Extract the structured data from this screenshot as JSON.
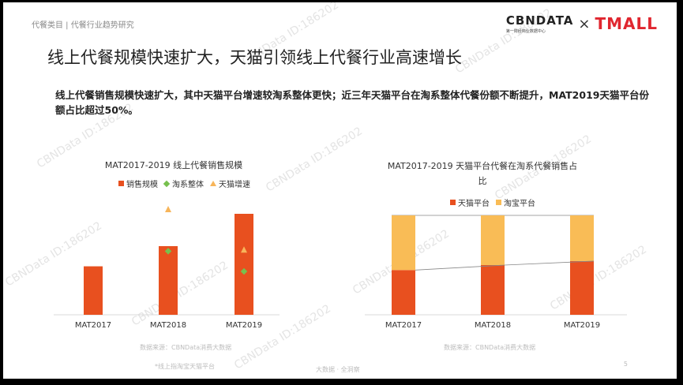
{
  "header": {
    "breadcrumb": "代餐类目 | 代餐行业趋势研究",
    "logo_cbn": "CBNDATA",
    "logo_cbn_sub": "第一财经商业数据中心",
    "logo_times": "×",
    "logo_tmall": "TMALL"
  },
  "title": "线上代餐规模快速扩大，天猫引领线上代餐行业高速增长",
  "subtitle": "线上代餐销售规模快速扩大，其中天猫平台增速较淘系整体更快；近三年天猫平台在淘系整体代餐份额不断提升，MAT2019天猫平台份额占比超过50%。",
  "watermark": "CBNData ID:186202",
  "footer": {
    "source_left": "数据来源：CBNData消费大数据",
    "source_right": "数据来源：CBNData消费大数据",
    "note": "*线上指淘宝天猫平台",
    "center": "大数据 · 全洞察",
    "page": "5"
  },
  "colors": {
    "red": "#e8501f",
    "yellow": "#f9bc56",
    "green": "#77c04e",
    "tri": "#f7b55a"
  },
  "chart_data": [
    {
      "type": "bar",
      "title": "MAT2017-2019 线上代餐销售规模",
      "categories": [
        "MAT2017",
        "MAT2018",
        "MAT2019"
      ],
      "legend": [
        "销售规模",
        "淘系整体",
        "天猫增速"
      ],
      "series": [
        {
          "name": "销售规模",
          "kind": "bar",
          "values": [
            0.48,
            0.68,
            1.0
          ]
        },
        {
          "name": "淘系整体",
          "kind": "marker-diamond",
          "values": [
            null,
            0.63,
            0.43
          ]
        },
        {
          "name": "天猫增速",
          "kind": "marker-triangle",
          "values": [
            null,
            1.0,
            0.6
          ]
        }
      ],
      "note": "no axis values shown; bar heights relative to MAT2019"
    },
    {
      "type": "bar",
      "stacked": true,
      "title": "MAT2017-2019 天猫平台代餐在淘系代餐销售占比",
      "categories": [
        "MAT2017",
        "MAT2018",
        "MAT2019"
      ],
      "legend": [
        "天猫平台",
        "淘宝平台"
      ],
      "series": [
        {
          "name": "天猫平台",
          "values": [
            45,
            50,
            54
          ]
        },
        {
          "name": "淘宝平台",
          "values": [
            55,
            50,
            46
          ]
        }
      ],
      "ylim": [
        0,
        100
      ]
    }
  ]
}
